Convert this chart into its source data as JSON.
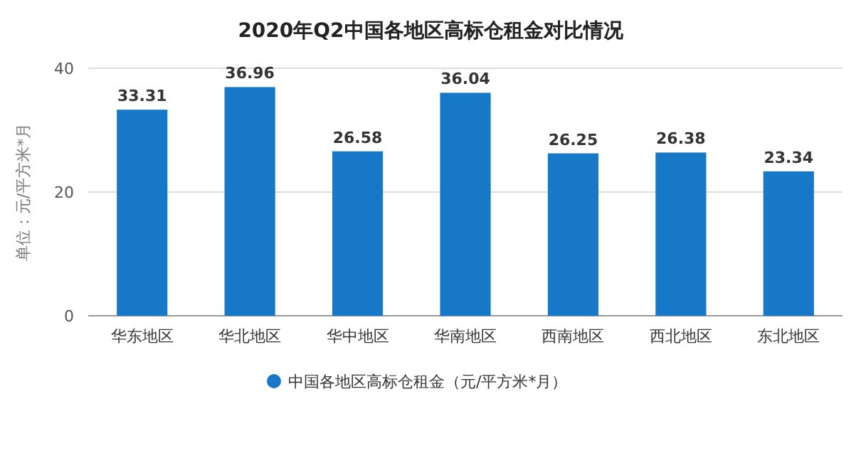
{
  "chart_data": {
    "type": "bar",
    "title": "2020年Q2中国各地区高标仓租金对比情况",
    "ylabel": "单位：元/平方米*月",
    "categories": [
      "华东地区",
      "华北地区",
      "华中地区",
      "华南地区",
      "西南地区",
      "西北地区",
      "东北地区"
    ],
    "series": [
      {
        "name": "中国各地区高标仓租金（元/平方米*月）",
        "color": "#1878c8",
        "values": [
          33.31,
          36.96,
          26.58,
          36.04,
          26.25,
          26.38,
          23.34
        ]
      }
    ],
    "ylim": [
      0,
      40
    ],
    "yticks": [
      0,
      20,
      40
    ],
    "grid": "y",
    "legend": "bottom",
    "data_labels": true
  }
}
